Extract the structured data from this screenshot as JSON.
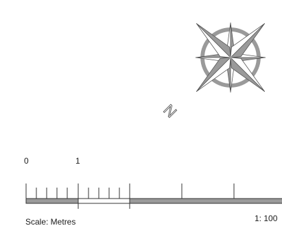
{
  "compass": {
    "north_label": "N",
    "color": "#9a9a9a",
    "light_color": "#ffffff",
    "stroke_color": "#555555"
  },
  "scale": {
    "tick_labels": [
      "0",
      "1"
    ],
    "unit_label": "Scale: Metres",
    "ratio_label": "1: 100",
    "bar_fill_color": "#9a9a9a",
    "line_color": "#333333"
  }
}
